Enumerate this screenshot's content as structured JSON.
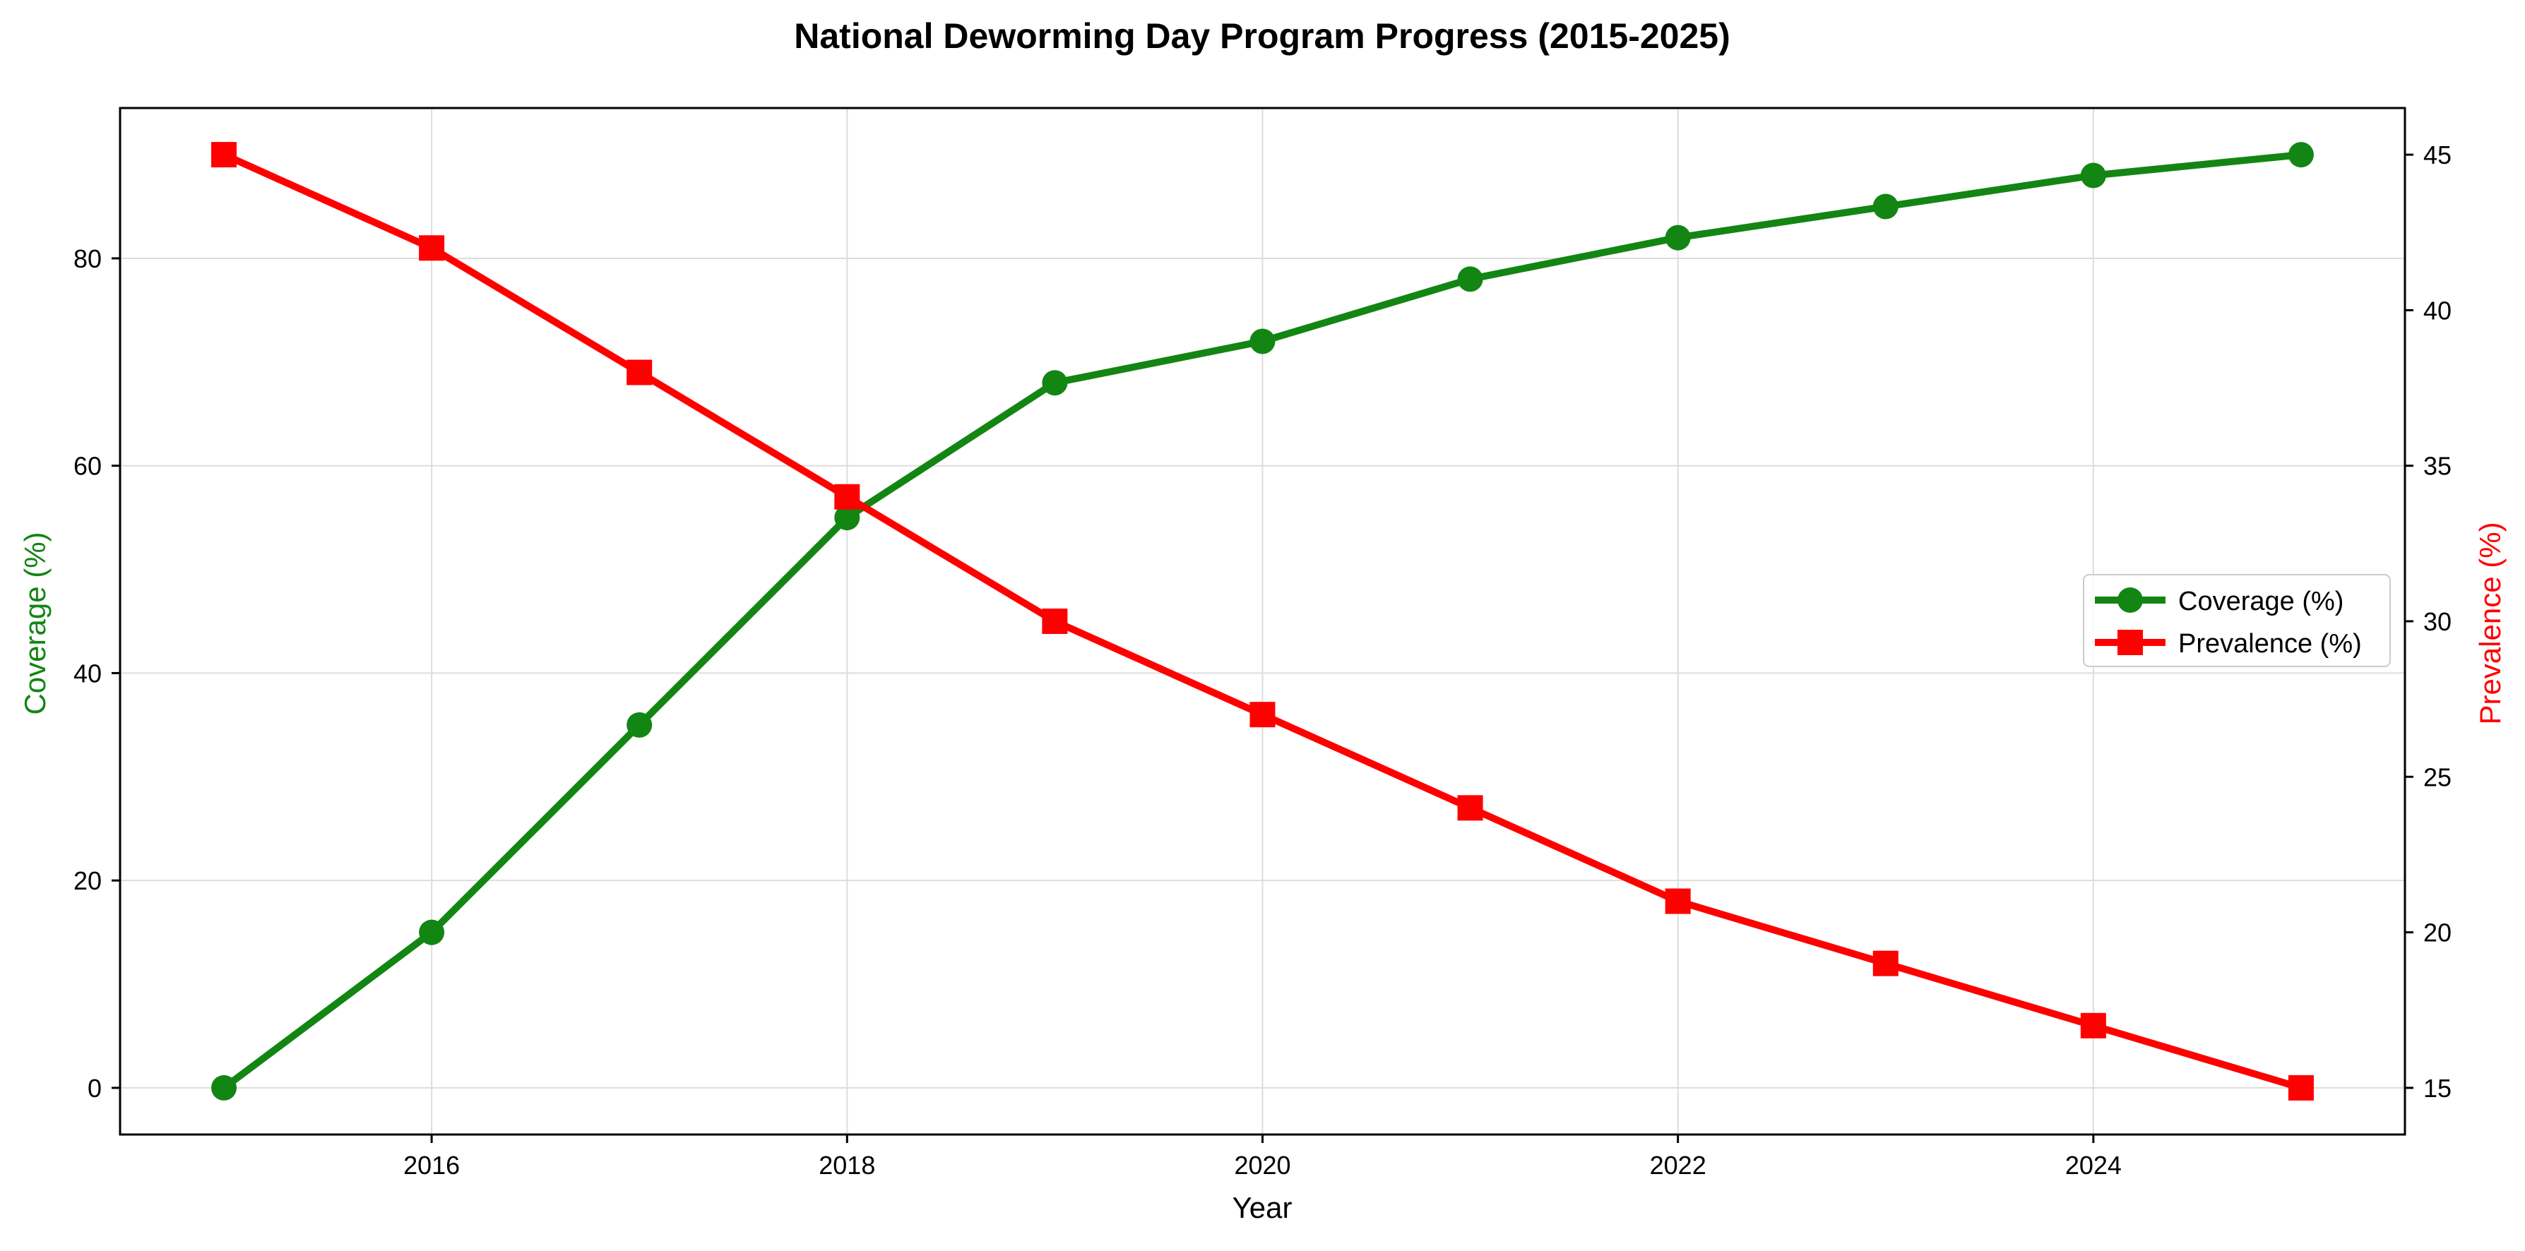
{
  "chart_data": {
    "type": "line",
    "title": "National Deworming Day Program Progress (2015-2025)",
    "xlabel": "Year",
    "ylabel_left": "Coverage (%)",
    "ylabel_right": "Prevalence (%)",
    "x": [
      2015,
      2016,
      2017,
      2018,
      2019,
      2020,
      2021,
      2022,
      2023,
      2024,
      2025
    ],
    "xlim": [
      2014.5,
      2025.5
    ],
    "xticks": [
      2016,
      2018,
      2020,
      2022,
      2024
    ],
    "ylim_left": [
      -4.5,
      94.5
    ],
    "yticks_left": [
      0,
      20,
      40,
      60,
      80
    ],
    "ylim_right": [
      13.5,
      46.5
    ],
    "yticks_right": [
      15,
      20,
      25,
      30,
      35,
      40,
      45
    ],
    "grid": true,
    "legend_position": "center-right",
    "series": [
      {
        "name": "Coverage (%)",
        "axis": "left",
        "color": "#138513",
        "marker": "circle",
        "values": [
          0,
          15,
          35,
          55,
          68,
          72,
          78,
          82,
          85,
          88,
          90
        ]
      },
      {
        "name": "Prevalence (%)",
        "axis": "right",
        "color": "#ff0000",
        "marker": "square",
        "values": [
          45,
          42,
          38,
          34,
          30,
          27,
          24,
          21,
          19,
          17,
          15
        ]
      }
    ]
  }
}
